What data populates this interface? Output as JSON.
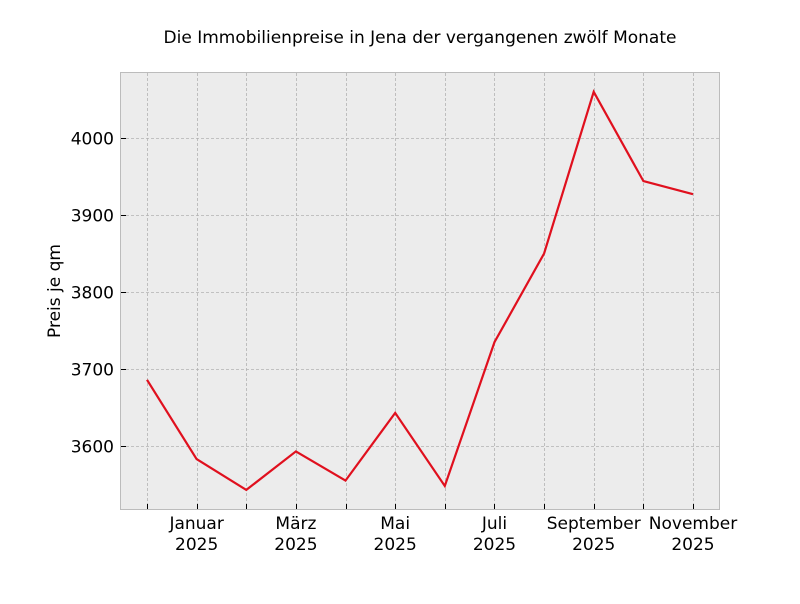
{
  "chart_data": {
    "type": "line",
    "title": "Die Immobilienpreise in Jena der vergangenen zwölf Monate",
    "xlabel": "",
    "ylabel": "Preis je qm",
    "x": [
      "2024-12",
      "2025-01",
      "2025-02",
      "2025-03",
      "2025-04",
      "2025-05",
      "2025-06",
      "2025-07",
      "2025-08",
      "2025-09",
      "2025-10",
      "2025-11"
    ],
    "series": [
      {
        "name": "Preis je qm",
        "color": "#e0101e",
        "values": [
          3686,
          3583,
          3543,
          3593,
          3555,
          3643,
          3548,
          3735,
          3850,
          4060,
          3944,
          3927
        ]
      }
    ],
    "ylim": [
      3517,
      4086
    ],
    "yticks": [
      3600,
      3700,
      3800,
      3900,
      4000
    ],
    "xtick_labels": [
      {
        "month": "Januar",
        "year": "2025",
        "index": 1
      },
      {
        "month": "März",
        "year": "2025",
        "index": 3
      },
      {
        "month": "Mai",
        "year": "2025",
        "index": 5
      },
      {
        "month": "Juli",
        "year": "2025",
        "index": 7
      },
      {
        "month": "September",
        "year": "2025",
        "index": 9
      },
      {
        "month": "November",
        "year": "2025",
        "index": 11
      }
    ],
    "grid": true,
    "legend": "none",
    "style": {
      "background": "#ececec",
      "grid_color": "#b2b2b2",
      "spine_color": "#bcbcbc"
    }
  }
}
